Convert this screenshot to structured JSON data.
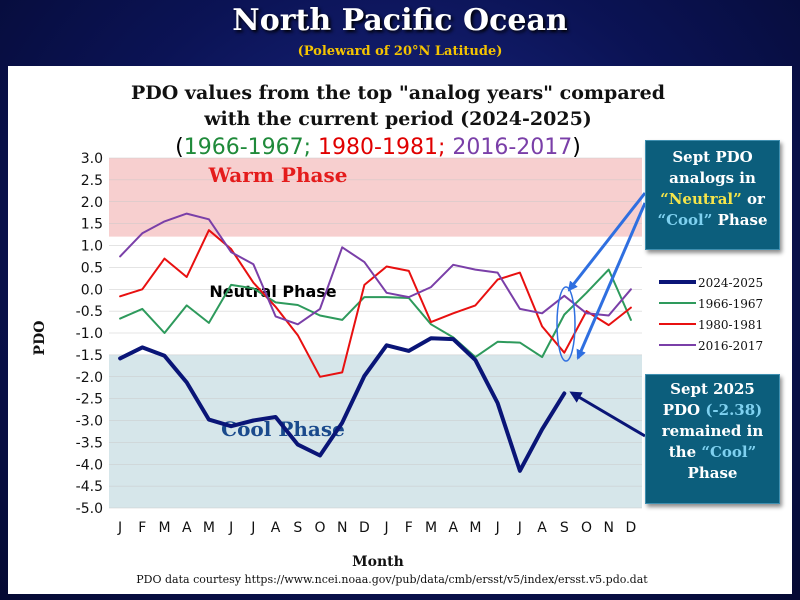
{
  "slide": {
    "title": "North Pacific Ocean",
    "subtitle": "(Poleward of 20°N Latitude)"
  },
  "chart_data": {
    "type": "line",
    "title": "PDO values from the top \"analog years\" compared",
    "title_line2": "with the current period (2024-2025)",
    "analog_legend": [
      {
        "text": "(",
        "color": "#000000"
      },
      {
        "text": "1966-1967;",
        "color": "#1f8a3a"
      },
      {
        "text": " 1980-1981;",
        "color": "#e00000"
      },
      {
        "text": " 2016-2017",
        "color": "#7a3fa8"
      },
      {
        "text": ")",
        "color": "#000000"
      }
    ],
    "xlabel": "Month",
    "ylabel": "PDO",
    "categories": [
      "J",
      "F",
      "M",
      "A",
      "M",
      "J",
      "J",
      "A",
      "S",
      "O",
      "N",
      "D",
      "J",
      "F",
      "M",
      "A",
      "M",
      "J",
      "J",
      "A",
      "S",
      "O",
      "N",
      "D"
    ],
    "ylim": [
      -5.0,
      3.0
    ],
    "yticks": [
      "3.0",
      "2.5",
      "2.0",
      "1.5",
      "1.0",
      "0.5",
      "0.0",
      "-0.5",
      "-1.0",
      "-1.5",
      "-2.0",
      "-2.5",
      "-3.0",
      "-3.5",
      "-4.0",
      "-4.5",
      "-5.0"
    ],
    "bands": [
      {
        "label": "Warm Phase",
        "from": 1.2,
        "to": 3.0,
        "color": "#f7cfcf",
        "text_color": "#e41c1c"
      },
      {
        "label": "Neutral Phase",
        "from": -1.5,
        "to": 1.2,
        "color": "#ffffff",
        "text_color": "#000000"
      },
      {
        "label": "Cool Phase",
        "from": -5.0,
        "to": -1.5,
        "color": "#d6e6ea",
        "text_color": "#1a4a8c"
      }
    ],
    "series": [
      {
        "name": "2024-2025",
        "color": "#0a1577",
        "width": 4,
        "values": [
          -1.58,
          -1.33,
          -1.52,
          -2.13,
          -2.98,
          -3.13,
          -3.0,
          -2.92,
          -3.55,
          -3.8,
          -3.05,
          -1.98,
          -1.28,
          -1.41,
          -1.12,
          -1.14,
          -1.62,
          -2.6,
          -4.15,
          -3.2,
          -2.38,
          null,
          null,
          null
        ]
      },
      {
        "name": "1966-1967",
        "color": "#2e9a5c",
        "width": 2,
        "values": [
          -0.67,
          -0.45,
          -1.0,
          -0.37,
          -0.77,
          0.1,
          0.02,
          -0.3,
          -0.36,
          -0.6,
          -0.7,
          -0.18,
          -0.18,
          -0.2,
          -0.8,
          -1.1,
          -1.55,
          -1.2,
          -1.22,
          -1.55,
          -0.58,
          -0.08,
          0.45,
          -0.7
        ]
      },
      {
        "name": "1980-1981",
        "color": "#e81010",
        "width": 2,
        "values": [
          -0.16,
          0.0,
          0.7,
          0.28,
          1.35,
          0.92,
          0.15,
          -0.4,
          -1.05,
          -2.0,
          -1.9,
          0.1,
          0.52,
          0.42,
          -0.75,
          -0.55,
          -0.37,
          0.22,
          0.38,
          -0.85,
          -1.45,
          -0.5,
          -0.82,
          -0.42
        ]
      },
      {
        "name": "2016-2017",
        "color": "#7a3fa8",
        "width": 2,
        "values": [
          0.75,
          1.28,
          1.55,
          1.73,
          1.6,
          0.85,
          0.57,
          -0.62,
          -0.8,
          -0.45,
          0.96,
          0.62,
          -0.08,
          -0.18,
          0.05,
          0.56,
          0.45,
          0.38,
          -0.45,
          -0.55,
          -0.15,
          -0.55,
          -0.6,
          0.0
        ]
      }
    ],
    "legend_position": "right"
  },
  "callouts": {
    "analogs": {
      "l1": "Sept PDO",
      "l2": "analogs in",
      "l3_q": "“Neutral”",
      "l3_or": " or",
      "l4_q": "“Cool”",
      "l4_rest": "  Phase"
    },
    "sept": {
      "l1": "Sept 2025",
      "l2a": "PDO ",
      "l2b": "(-2.38)",
      "l3": "remained in",
      "l4a": "the ",
      "l4b": "“Cool”",
      "l5": "Phase"
    }
  },
  "footer": {
    "source": "PDO data courtesy https://www.ncei.noaa.gov/pub/data/cmb/ersst/v5/index/ersst.v5.pdo.dat"
  }
}
